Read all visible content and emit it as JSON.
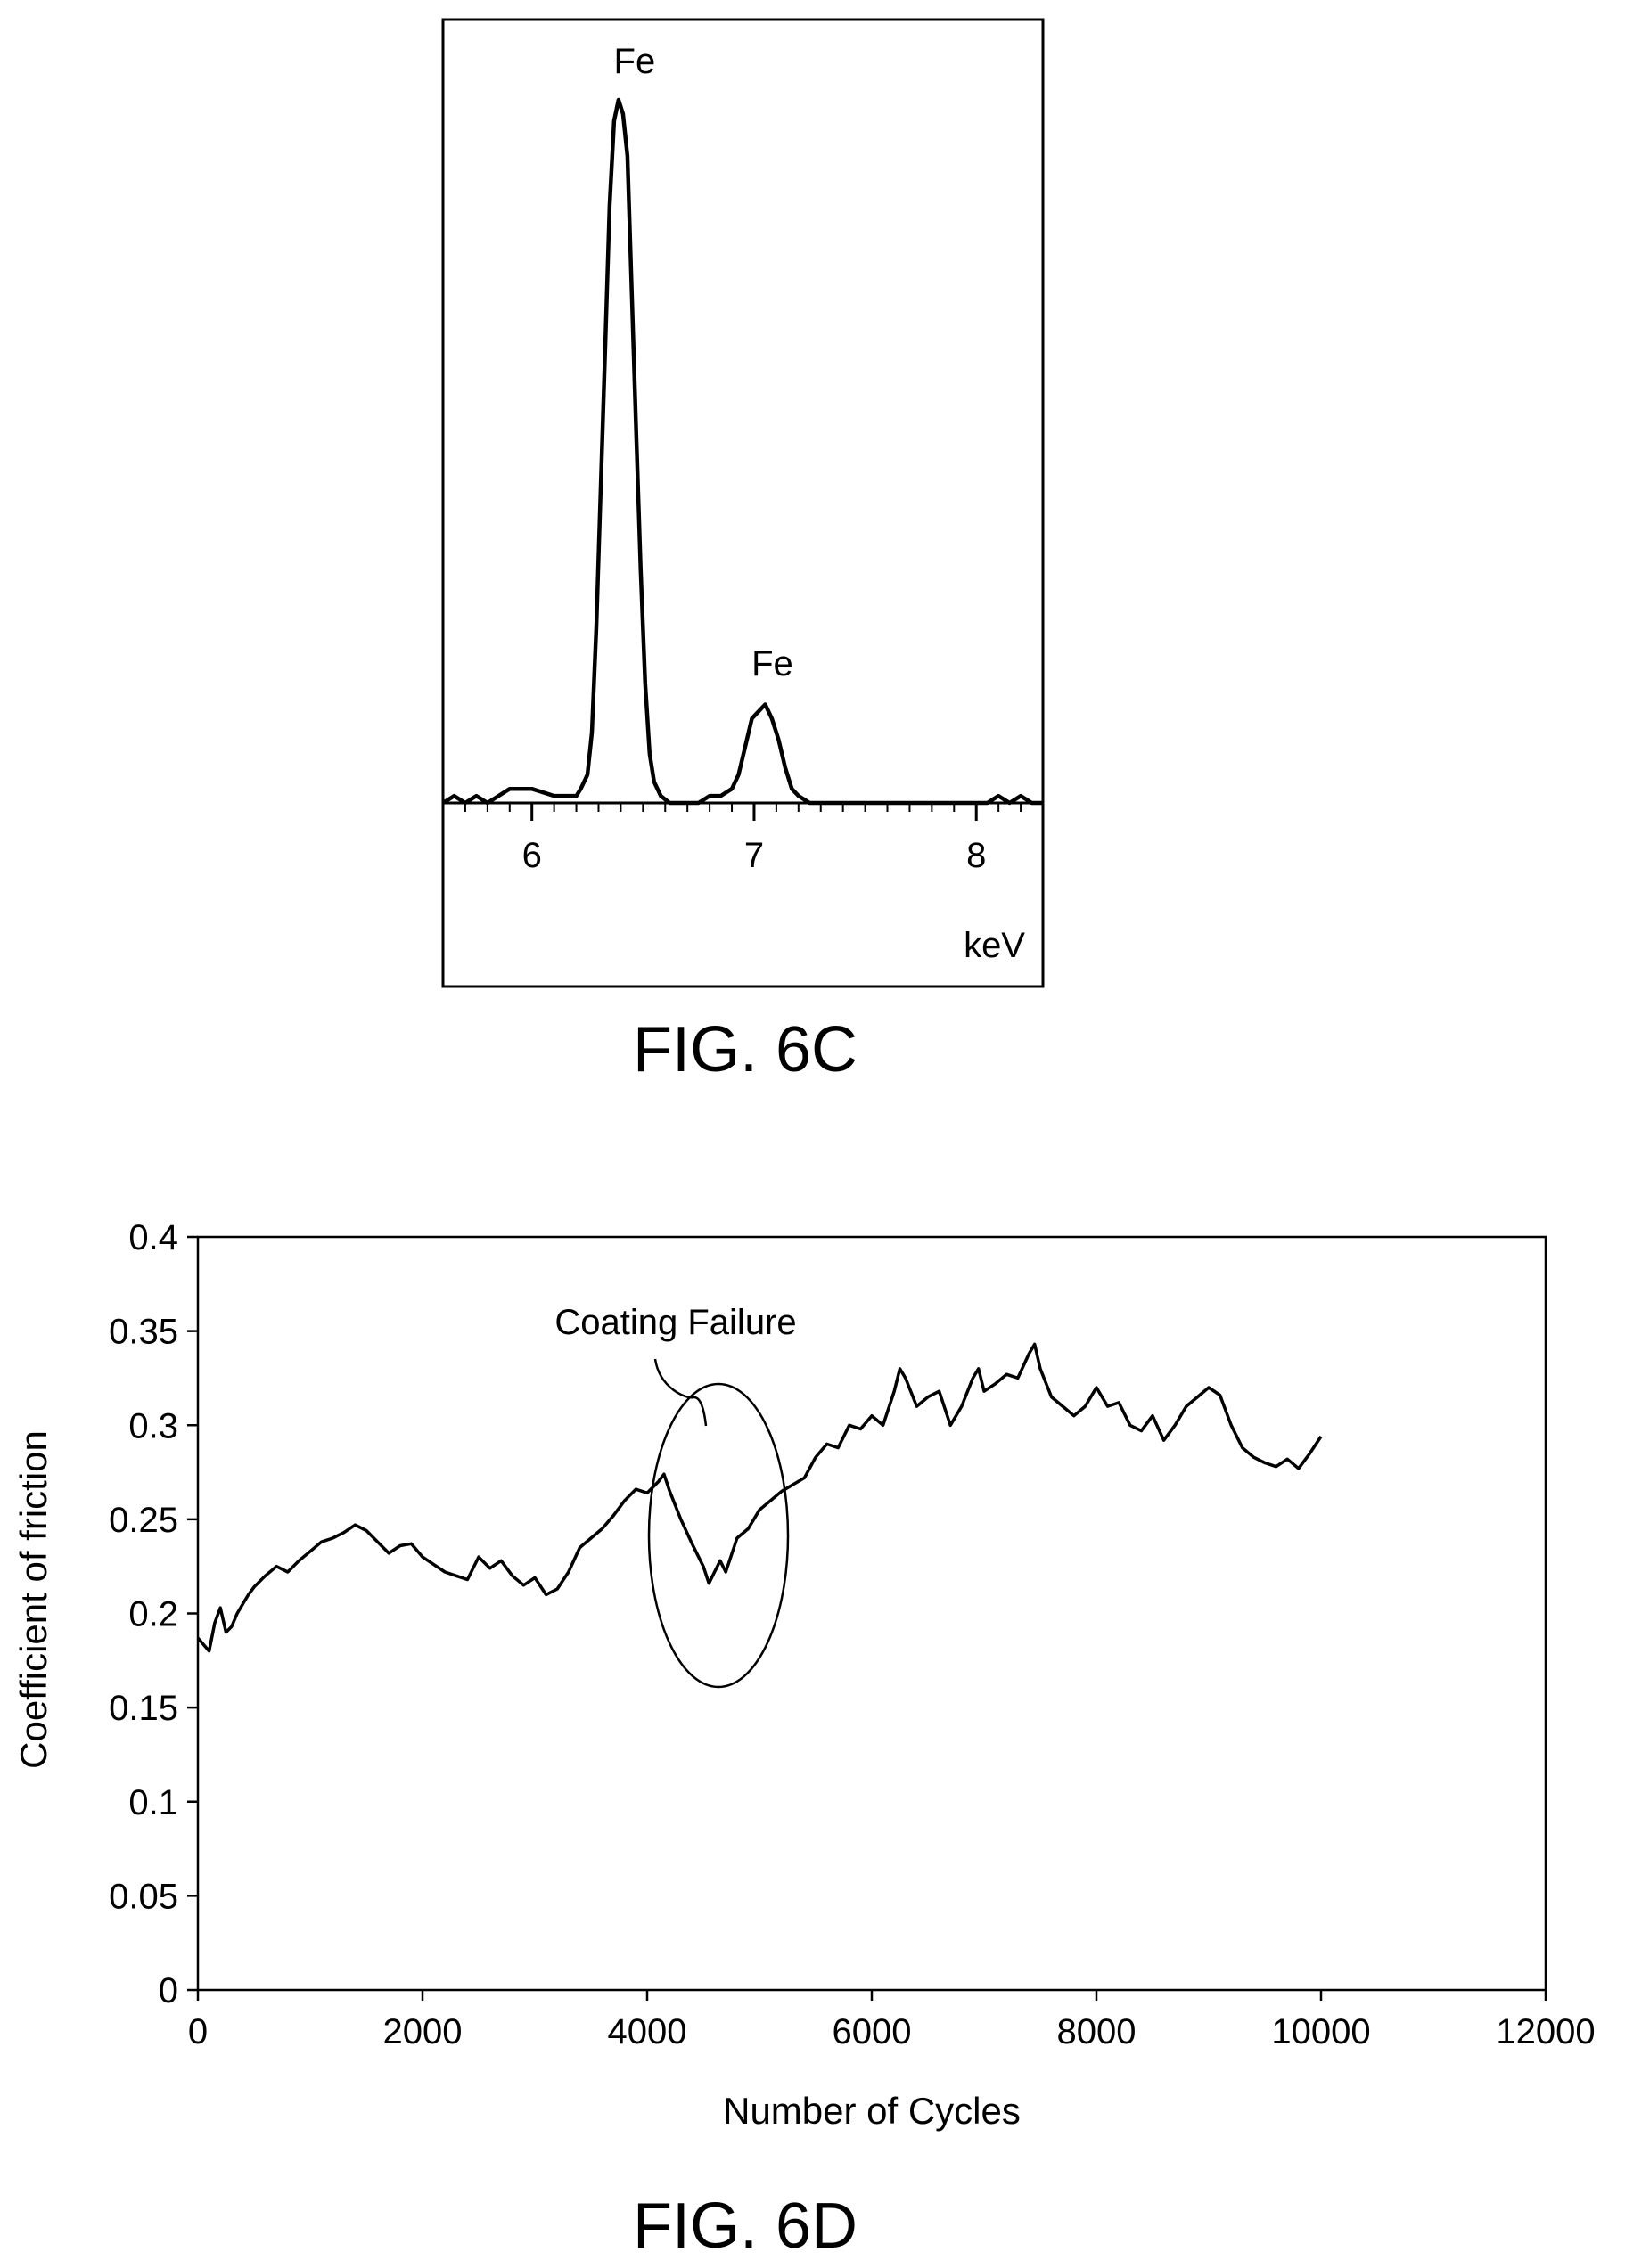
{
  "figures": {
    "top_caption": "FIG. 6C",
    "bottom_caption": "FIG. 6D"
  },
  "chart_data": [
    {
      "type": "line",
      "x_unit_label": "keV",
      "xlim": [
        5.6,
        8.3
      ],
      "x_ticks": [
        6,
        7,
        8
      ],
      "x_tick_labels": [
        "6",
        "7",
        "8"
      ],
      "y_axis_shown": false,
      "grid": false,
      "annotations": [
        {
          "text": "Fe",
          "x": 6.43
        },
        {
          "text": "Fe",
          "x": 7.05
        }
      ],
      "series": [
        {
          "x": [
            5.6,
            5.65,
            5.7,
            5.75,
            5.8,
            5.85,
            5.9,
            6.0,
            6.1,
            6.2,
            6.22,
            6.25,
            6.27,
            6.29,
            6.31,
            6.33,
            6.35,
            6.37,
            6.39,
            6.41,
            6.43,
            6.45,
            6.47,
            6.49,
            6.51,
            6.53,
            6.55,
            6.58,
            6.62,
            6.66,
            6.7,
            6.75,
            6.8,
            6.85,
            6.9,
            6.93,
            6.96,
            6.99,
            7.02,
            7.05,
            7.08,
            7.11,
            7.14,
            7.17,
            7.2,
            7.25,
            7.3,
            7.4,
            7.5,
            7.6,
            7.7,
            7.8,
            7.9,
            8.0,
            8.05,
            8.1,
            8.15,
            8.2,
            8.25,
            8.3
          ],
          "y": [
            0.0,
            0.01,
            0.0,
            0.01,
            0.0,
            0.01,
            0.02,
            0.02,
            0.01,
            0.01,
            0.02,
            0.04,
            0.1,
            0.25,
            0.45,
            0.65,
            0.85,
            0.97,
            1.0,
            0.98,
            0.92,
            0.72,
            0.52,
            0.33,
            0.17,
            0.07,
            0.03,
            0.01,
            0.0,
            0.0,
            0.0,
            0.0,
            0.01,
            0.01,
            0.02,
            0.04,
            0.08,
            0.12,
            0.13,
            0.14,
            0.12,
            0.09,
            0.05,
            0.02,
            0.01,
            0.0,
            0.0,
            0.0,
            0.0,
            0.0,
            0.0,
            0.0,
            0.0,
            0.0,
            0.0,
            0.01,
            0.0,
            0.01,
            0.0,
            0.0
          ]
        }
      ]
    },
    {
      "type": "line",
      "xlabel": "Number of Cycles",
      "ylabel": "Coefficient of friction",
      "xlim": [
        0,
        12000
      ],
      "ylim": [
        0,
        0.4
      ],
      "x_ticks": [
        0,
        2000,
        4000,
        6000,
        8000,
        10000,
        12000
      ],
      "x_tick_labels": [
        "0",
        "2000",
        "4000",
        "6000",
        "8000",
        "10000",
        "12000"
      ],
      "y_ticks": [
        0,
        0.05,
        0.1,
        0.15,
        0.2,
        0.25,
        0.3,
        0.35,
        0.4
      ],
      "y_tick_labels": [
        "0",
        "0.05",
        "0.1",
        "0.15",
        "0.2",
        "0.25",
        "0.3",
        "0.35",
        "0.4"
      ],
      "grid": false,
      "annotations": [
        {
          "text": "Coating Failure",
          "x": 4600,
          "y": 0.23
        }
      ],
      "series": [
        {
          "x": [
            0,
            100,
            150,
            200,
            250,
            300,
            350,
            400,
            450,
            500,
            600,
            700,
            800,
            900,
            1000,
            1100,
            1200,
            1300,
            1400,
            1500,
            1600,
            1700,
            1800,
            1900,
            2000,
            2100,
            2200,
            2300,
            2400,
            2500,
            2600,
            2700,
            2800,
            2900,
            3000,
            3100,
            3200,
            3300,
            3400,
            3500,
            3600,
            3700,
            3800,
            3900,
            4000,
            4100,
            4150,
            4200,
            4300,
            4400,
            4500,
            4550,
            4600,
            4650,
            4700,
            4800,
            4900,
            5000,
            5200,
            5400,
            5500,
            5600,
            5700,
            5800,
            5900,
            6000,
            6100,
            6200,
            6250,
            6300,
            6400,
            6500,
            6600,
            6700,
            6800,
            6900,
            6950,
            7000,
            7100,
            7200,
            7300,
            7400,
            7450,
            7500,
            7600,
            7700,
            7800,
            7900,
            8000,
            8100,
            8200,
            8300,
            8400,
            8500,
            8600,
            8700,
            8800,
            8900,
            9000,
            9100,
            9200,
            9300,
            9400,
            9500,
            9600,
            9700,
            9800,
            9900,
            10000
          ],
          "y": [
            0.187,
            0.18,
            0.195,
            0.203,
            0.19,
            0.193,
            0.2,
            0.205,
            0.21,
            0.214,
            0.22,
            0.225,
            0.222,
            0.228,
            0.233,
            0.238,
            0.24,
            0.243,
            0.247,
            0.244,
            0.238,
            0.232,
            0.236,
            0.237,
            0.23,
            0.226,
            0.222,
            0.22,
            0.218,
            0.23,
            0.224,
            0.228,
            0.22,
            0.215,
            0.219,
            0.21,
            0.213,
            0.222,
            0.235,
            0.24,
            0.245,
            0.252,
            0.26,
            0.266,
            0.264,
            0.27,
            0.274,
            0.265,
            0.25,
            0.237,
            0.225,
            0.216,
            0.222,
            0.228,
            0.222,
            0.24,
            0.245,
            0.255,
            0.265,
            0.272,
            0.283,
            0.29,
            0.288,
            0.3,
            0.298,
            0.305,
            0.3,
            0.318,
            0.33,
            0.325,
            0.31,
            0.315,
            0.318,
            0.3,
            0.31,
            0.325,
            0.33,
            0.318,
            0.322,
            0.327,
            0.325,
            0.338,
            0.343,
            0.33,
            0.315,
            0.31,
            0.305,
            0.31,
            0.32,
            0.31,
            0.312,
            0.3,
            0.297,
            0.305,
            0.292,
            0.3,
            0.31,
            0.315,
            0.32,
            0.316,
            0.3,
            0.288,
            0.283,
            0.28,
            0.278,
            0.282,
            0.277,
            0.285,
            0.294
          ]
        }
      ]
    }
  ]
}
